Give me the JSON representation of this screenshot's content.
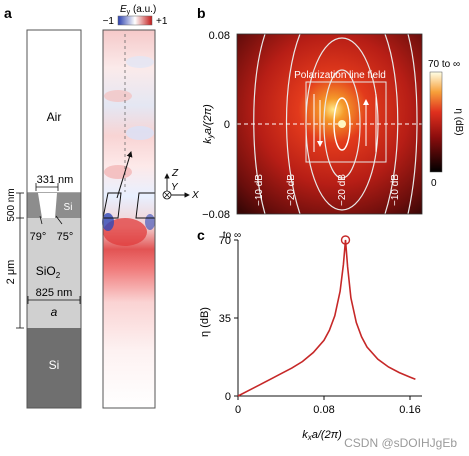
{
  "panels": {
    "a": {
      "label": "a",
      "colorbar": {
        "title": "E",
        "title_sub": "y",
        "title_unit": " (a.u.)",
        "min": "−1",
        "max": "+1"
      },
      "layers": {
        "air": "Air",
        "si_top": "Si",
        "sio2": "SiO",
        "sio2_sub": "2",
        "si_bottom": "Si"
      },
      "dimensions": {
        "hole_width": "331 nm",
        "slab_thickness": "500 nm",
        "angle_left": "79°",
        "angle_right": "75°",
        "oxide_thickness": "2 μm",
        "period": "825 nm",
        "period_symbol": "a"
      },
      "axes": {
        "z": "Z",
        "y": "Y",
        "x": "X"
      }
    },
    "b": {
      "label": "b",
      "ylabel": "k",
      "ylabel_sub": "y",
      "ylabel_rest": "a/(2π)",
      "yticks": [
        "0.08",
        "0",
        "−0.08"
      ],
      "inset_title": "Polarization line field",
      "contour_labels": [
        "−10 dB",
        "−20 dB",
        "−20 dB",
        "−10 dB"
      ],
      "colorbar": {
        "top": "70 to ∞",
        "bottom": "0",
        "label": "η (dB)"
      }
    },
    "c": {
      "label": "c",
      "ylabel": "η (dB)",
      "xlabel": "k",
      "xlabel_sub": "x",
      "xlabel_rest": "a/(2π)",
      "top_label": "to ∞"
    }
  },
  "chart_data": {
    "type": "line",
    "xlabel": "kxa/(2π)",
    "ylabel": "η (dB)",
    "xlim": [
      0,
      0.16
    ],
    "ylim": [
      0,
      70
    ],
    "xticks": [
      "0",
      "0.08",
      "0.16"
    ],
    "yticks": [
      "0",
      "35",
      "70"
    ],
    "peak": {
      "x": 0.1,
      "y": 70
    },
    "x": [
      0,
      0.01,
      0.02,
      0.03,
      0.04,
      0.05,
      0.06,
      0.07,
      0.08,
      0.085,
      0.09,
      0.095,
      0.098,
      0.1,
      0.102,
      0.105,
      0.11,
      0.115,
      0.12,
      0.13,
      0.14,
      0.15,
      0.16,
      0.165
    ],
    "y": [
      0,
      2.5,
      5,
      7.5,
      10,
      12.5,
      15.5,
      19.5,
      25,
      29.5,
      36,
      47,
      59,
      70,
      58,
      44,
      33,
      26.5,
      22,
      16.5,
      13,
      10.5,
      8.5,
      7.5
    ],
    "color": "#c62828"
  },
  "watermark": "CSDN @sDOIHJgEb"
}
